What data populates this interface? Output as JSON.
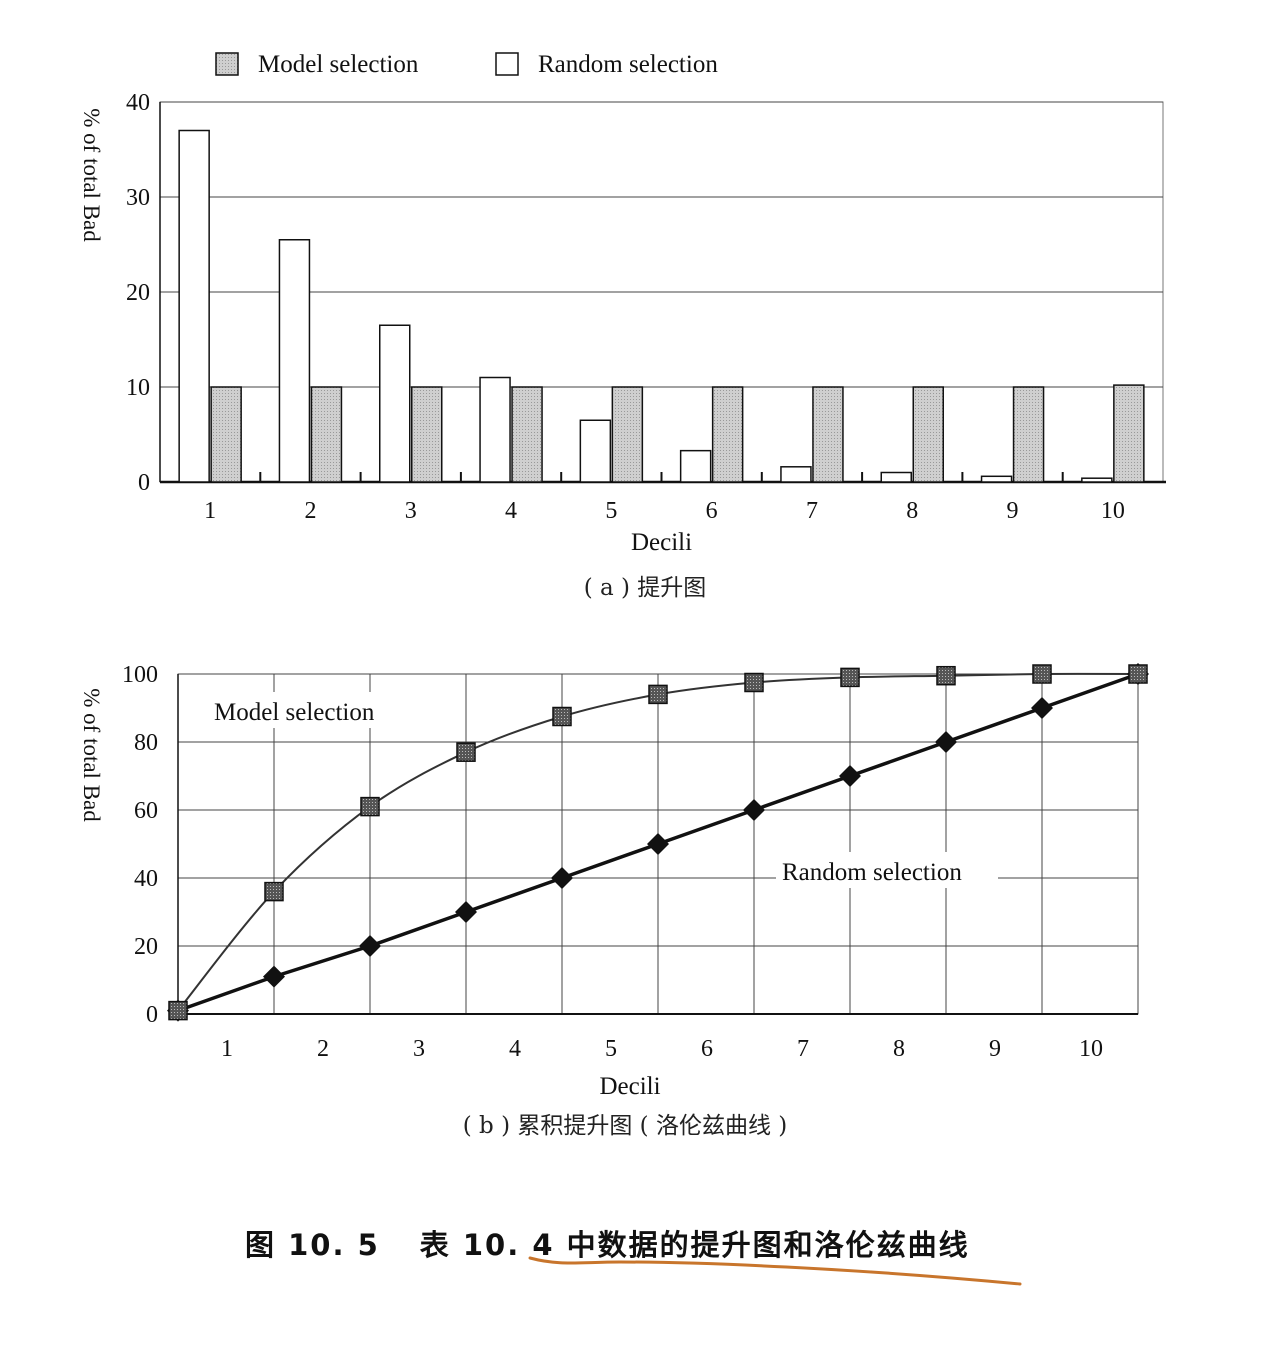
{
  "chart_data": [
    {
      "type": "bar",
      "legend": [
        {
          "name": "Model selection",
          "fill": "#cfcfcf"
        },
        {
          "name": "Random selection",
          "fill": "#ffffff"
        }
      ],
      "legend_position": "top",
      "categories": [
        "1",
        "2",
        "3",
        "4",
        "5",
        "6",
        "7",
        "8",
        "9",
        "10"
      ],
      "series": [
        {
          "name": "Random selection",
          "values": [
            37,
            25.5,
            16.5,
            11,
            6.5,
            3.3,
            1.6,
            1.0,
            0.6,
            0.4
          ]
        },
        {
          "name": "Model selection",
          "values": [
            10,
            10,
            10,
            10,
            10,
            10,
            10,
            10,
            10,
            10.2
          ]
        }
      ],
      "xlabel": "Decili",
      "ylabel": "% of total Bad",
      "ylim": [
        0,
        40
      ],
      "yticks": [
        "0",
        "10",
        "20",
        "30",
        "40"
      ],
      "grid": true,
      "subtitle": "( a ) 提升图"
    },
    {
      "type": "line",
      "x": [
        0,
        1,
        2,
        3,
        4,
        5,
        6,
        7,
        8,
        9,
        10
      ],
      "xticklabels": [
        "1",
        "2",
        "3",
        "4",
        "5",
        "6",
        "7",
        "8",
        "9",
        "10"
      ],
      "series": [
        {
          "name": "Model selection",
          "marker": "square",
          "values": [
            1,
            36,
            61,
            77,
            87.5,
            94,
            97.5,
            99,
            99.5,
            100,
            100
          ]
        },
        {
          "name": "Random selection",
          "marker": "diamond",
          "values": [
            1,
            11,
            20,
            30,
            40,
            50,
            60,
            70,
            80,
            90,
            100
          ]
        }
      ],
      "xlabel": "Decili",
      "ylabel": "% of total Bad",
      "ylim": [
        0,
        100
      ],
      "yticks": [
        "0",
        "20",
        "40",
        "60",
        "80",
        "100"
      ],
      "grid": true,
      "subtitle": "( b ) 累积提升图 ( 洛伦兹曲线 )"
    }
  ],
  "caption": {
    "figure_no": "图 10. 5",
    "table_ref": "表 10. 4",
    "text": "中数据的提升图和洛伦兹曲线"
  },
  "colors": {
    "underline": "#c8752c",
    "model_fill": "#cfcfcf",
    "axis": "#111111",
    "grid": "#444444"
  }
}
